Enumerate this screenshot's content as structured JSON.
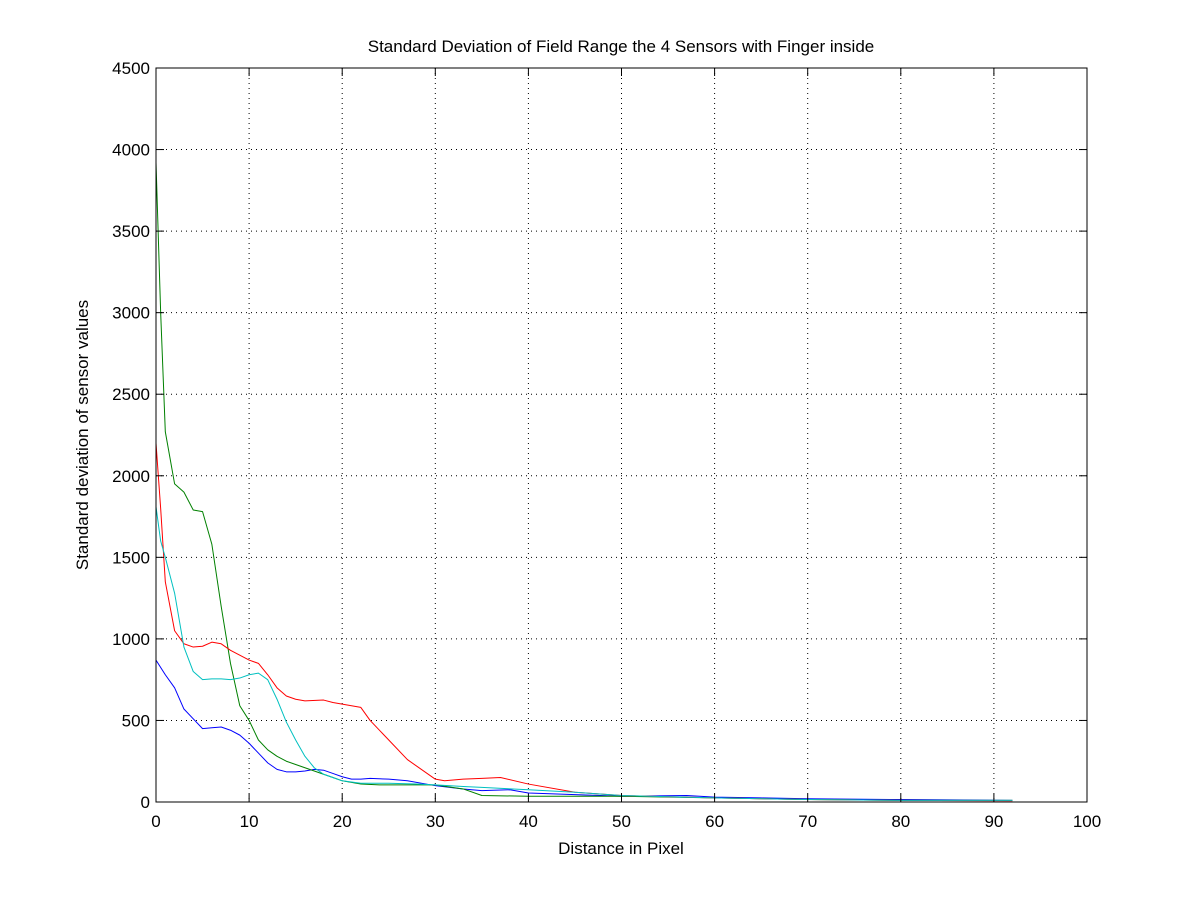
{
  "chart_data": {
    "type": "line",
    "title": "Standard Deviation of Field Range the 4 Sensors with Finger inside",
    "xlabel": "Distance in Pixel",
    "ylabel": "Standard deviation of sensor values",
    "xlim": [
      0,
      100
    ],
    "ylim": [
      0,
      4500
    ],
    "xticks": [
      0,
      10,
      20,
      30,
      40,
      50,
      60,
      70,
      80,
      90,
      100
    ],
    "yticks": [
      0,
      500,
      1000,
      1500,
      2000,
      2500,
      3000,
      3500,
      4000,
      4500
    ],
    "grid": true,
    "series": [
      {
        "color": "#0000ff",
        "x": [
          0,
          1,
          2,
          3,
          4,
          5,
          6,
          7,
          8,
          9,
          10,
          11,
          12,
          13,
          14,
          15,
          16,
          17,
          18,
          19,
          20,
          21,
          22,
          23,
          25,
          27,
          30,
          33,
          35,
          38,
          40,
          45,
          50,
          57,
          60,
          65,
          70,
          80,
          92
        ],
        "y": [
          870,
          780,
          700,
          570,
          510,
          450,
          455,
          460,
          440,
          410,
          360,
          300,
          240,
          200,
          185,
          185,
          190,
          200,
          195,
          175,
          155,
          140,
          140,
          145,
          140,
          130,
          100,
          80,
          70,
          75,
          55,
          45,
          35,
          40,
          30,
          25,
          20,
          15,
          10
        ]
      },
      {
        "color": "#008000",
        "x": [
          0,
          0.5,
          1,
          2,
          3,
          4,
          5,
          6,
          7,
          8,
          9,
          10,
          11,
          12,
          13,
          14,
          15,
          16,
          17,
          18,
          19,
          20,
          22,
          24,
          27,
          30,
          33,
          35,
          40,
          50,
          60,
          70,
          80,
          92
        ],
        "y": [
          3920,
          3000,
          2270,
          1950,
          1900,
          1790,
          1780,
          1580,
          1200,
          850,
          590,
          500,
          380,
          320,
          280,
          250,
          230,
          210,
          190,
          170,
          150,
          130,
          110,
          105,
          105,
          105,
          80,
          40,
          35,
          35,
          25,
          15,
          10,
          10
        ]
      },
      {
        "color": "#ff0000",
        "x": [
          0,
          0.5,
          1,
          2,
          3,
          4,
          5,
          6,
          7,
          8,
          9,
          10,
          11,
          12,
          13,
          14,
          15,
          16,
          18,
          19,
          20,
          22,
          23,
          25,
          27,
          30,
          31,
          33,
          35,
          37,
          40,
          45,
          50,
          60,
          70,
          80,
          92
        ],
        "y": [
          2200,
          1800,
          1350,
          1050,
          970,
          950,
          955,
          980,
          970,
          930,
          900,
          870,
          850,
          780,
          700,
          650,
          630,
          620,
          625,
          610,
          600,
          580,
          500,
          380,
          260,
          140,
          130,
          140,
          145,
          150,
          110,
          60,
          40,
          25,
          15,
          10,
          8
        ]
      },
      {
        "color": "#00c0c0",
        "x": [
          0,
          0.5,
          1,
          2,
          3,
          4,
          5,
          6,
          7,
          8,
          9,
          10,
          11,
          12,
          13,
          14,
          15,
          16,
          17,
          18,
          19,
          20,
          22,
          25,
          28,
          30,
          33,
          35,
          40,
          45,
          50,
          60,
          70,
          80,
          92
        ],
        "y": [
          1810,
          1600,
          1500,
          1280,
          950,
          800,
          750,
          755,
          755,
          750,
          760,
          780,
          790,
          750,
          630,
          490,
          380,
          280,
          210,
          170,
          150,
          130,
          115,
          115,
          110,
          105,
          95,
          90,
          75,
          60,
          40,
          25,
          15,
          10,
          10
        ]
      }
    ]
  }
}
